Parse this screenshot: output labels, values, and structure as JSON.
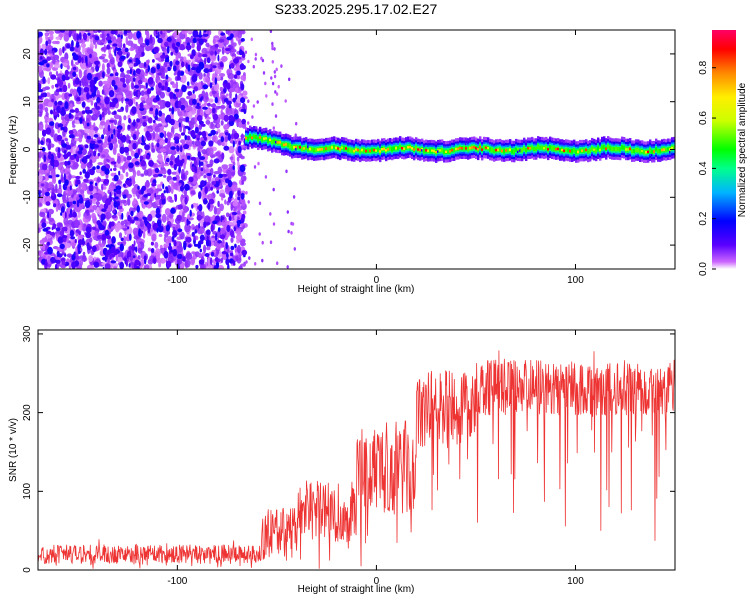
{
  "title": "S233.2025.295.17.02.E27",
  "colors": {
    "snr_line": "#ee3333",
    "spectrum_background": "#ffffff",
    "frame": "#000000"
  },
  "colorbar": {
    "label": "Normalized spectral amplitude",
    "ticks": [
      "0.0",
      "0.2",
      "0.4",
      "0.6",
      "0.8"
    ],
    "range": [
      0,
      0.95
    ]
  },
  "chart_data": [
    {
      "type": "heatmap",
      "title": "S233.2025.295.17.02.E27",
      "xlabel": "Height of straight line (km)",
      "ylabel": "Frequency (Hz)",
      "xlim": [
        -170,
        150
      ],
      "ylim": [
        -25,
        25
      ],
      "xticks": [
        -100,
        0,
        100
      ],
      "xtick_labels": [
        "-100",
        "0",
        "100"
      ],
      "yticks": [
        -20,
        -10,
        0,
        10,
        20
      ],
      "ytick_labels": [
        "-20",
        "-10",
        "0",
        "10",
        "20"
      ],
      "noise_region_x": [
        -170,
        -66
      ],
      "signal": {
        "x_start": -66,
        "x_end": 150,
        "center_freq_hz": 0,
        "start_freq_hz": 2.5,
        "bandwidth_hz": 3
      }
    },
    {
      "type": "line",
      "xlabel": "Height of straight line (km)",
      "ylabel": "SNR (10 * v/v)",
      "xlim": [
        -170,
        150
      ],
      "ylim": [
        0,
        305
      ],
      "xticks": [
        -100,
        0,
        100
      ],
      "xtick_labels": [
        "-100",
        "0",
        "100"
      ],
      "yticks": [
        0,
        100,
        200,
        300
      ],
      "ytick_labels": [
        "0",
        "100",
        "200",
        "300"
      ],
      "series": [
        {
          "name": "SNR",
          "segments": [
            {
              "x_from": -170,
              "x_to": -58,
              "mean": 20,
              "spread": 12
            },
            {
              "x_from": -58,
              "x_to": -40,
              "mean": 45,
              "spread": 35
            },
            {
              "x_from": -40,
              "x_to": -10,
              "mean": 75,
              "spread": 40
            },
            {
              "x_from": -10,
              "x_to": 20,
              "mean": 130,
              "spread": 60
            },
            {
              "x_from": 20,
              "x_to": 50,
              "mean": 205,
              "spread": 50
            },
            {
              "x_from": 50,
              "x_to": 150,
              "mean": 232,
              "spread": 35
            }
          ]
        }
      ]
    }
  ]
}
